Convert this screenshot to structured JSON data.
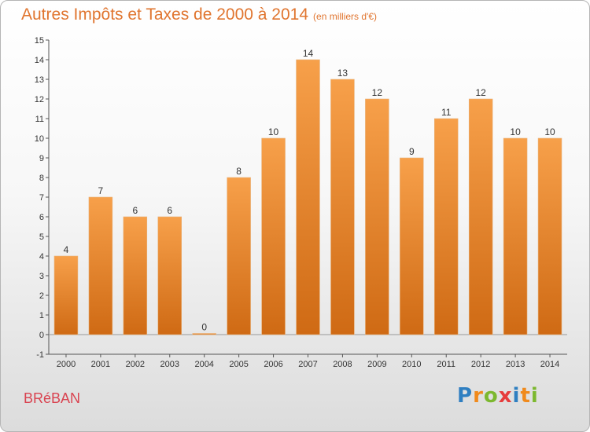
{
  "title": "Autres Impôts et Taxes de 2000 à 2014",
  "title_unit": "(en milliers d'€)",
  "commune": "BRéBAN",
  "logo": {
    "text": "Proxiti",
    "letters": [
      {
        "ch": "P",
        "color": "#2f7fc1"
      },
      {
        "ch": "r",
        "color": "#f08a1c"
      },
      {
        "ch": "o",
        "color": "#7cb82f"
      },
      {
        "ch": "x",
        "color": "#e63b3b"
      },
      {
        "ch": "i",
        "color": "#2f7fc1"
      },
      {
        "ch": "t",
        "color": "#f08a1c"
      },
      {
        "ch": "i",
        "color": "#7cb82f"
      }
    ]
  },
  "chart_data": {
    "type": "bar",
    "categories": [
      "2000",
      "2001",
      "2002",
      "2003",
      "2004",
      "2005",
      "2006",
      "2007",
      "2008",
      "2009",
      "2010",
      "2011",
      "2012",
      "2013",
      "2014"
    ],
    "values": [
      4,
      7,
      6,
      6,
      0,
      8,
      10,
      14,
      13,
      12,
      9,
      11,
      12,
      10,
      10
    ],
    "data_labels": [
      "4",
      "7",
      "6",
      "6",
      "0",
      "8",
      "10",
      "14",
      "13",
      "12",
      "9",
      "11",
      "12",
      "10",
      "10"
    ],
    "yticks": [
      "-1",
      "0",
      "1",
      "2",
      "3",
      "4",
      "5",
      "6",
      "7",
      "8",
      "9",
      "10",
      "11",
      "12",
      "13",
      "14",
      "15"
    ],
    "ylim": [
      -1,
      15
    ],
    "grid": false,
    "bar_color": "#f08a2e",
    "bar_color_dark": "#d06c16"
  }
}
